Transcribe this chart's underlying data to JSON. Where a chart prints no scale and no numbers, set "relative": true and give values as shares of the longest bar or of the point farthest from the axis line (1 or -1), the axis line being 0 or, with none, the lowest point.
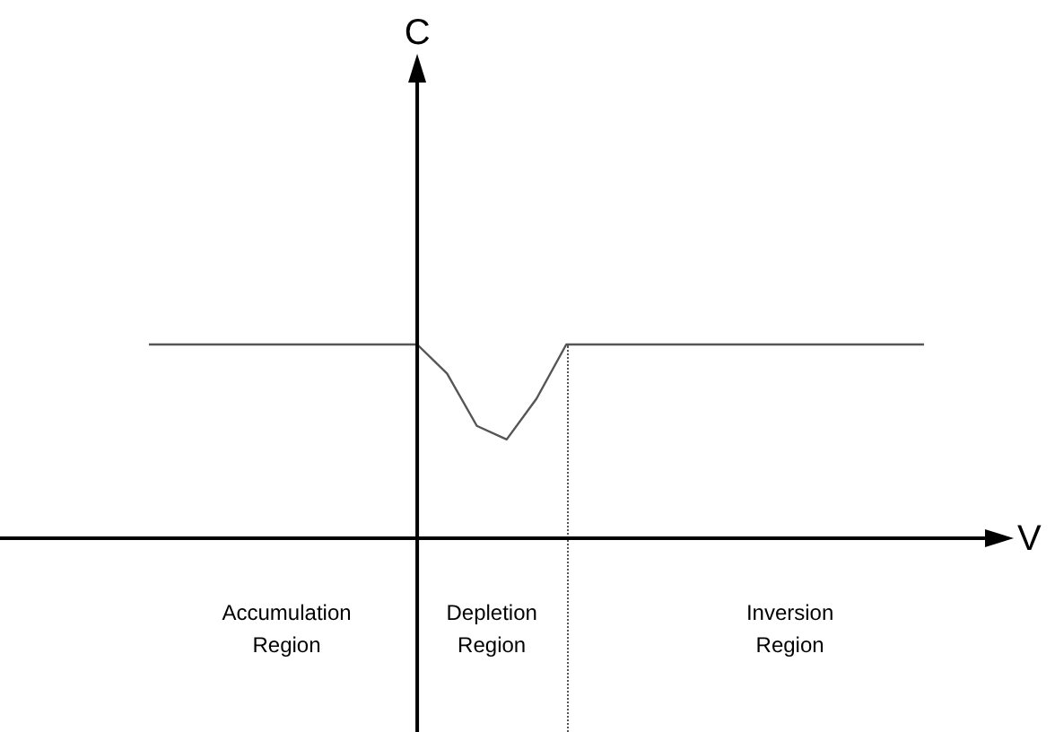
{
  "chart_data": {
    "type": "line",
    "relative": true,
    "xlabel": "V",
    "marker": "none",
    "line_style": "solid",
    "categories": [
      null,
      null,
      null,
      null,
      null,
      null,
      null,
      null,
      null,
      null,
      null,
      null,
      null,
      null,
      null,
      null,
      null,
      null,
      null,
      null,
      null,
      null,
      null,
      null,
      null,
      null,
      null
    ],
    "series": [
      {
        "color": "#555555",
        "values": [
          1,
          1,
          1,
          1,
          1,
          1,
          1,
          1,
          1,
          1,
          0.85,
          0.58,
          0.51,
          0.72,
          1,
          1,
          1,
          1,
          1,
          1,
          1,
          1,
          1,
          1,
          1,
          1,
          1
        ]
      }
    ],
    "annotations": [
      "C",
      "Accumulation Region",
      "Depletion Region",
      "Inversion Region"
    ]
  }
}
